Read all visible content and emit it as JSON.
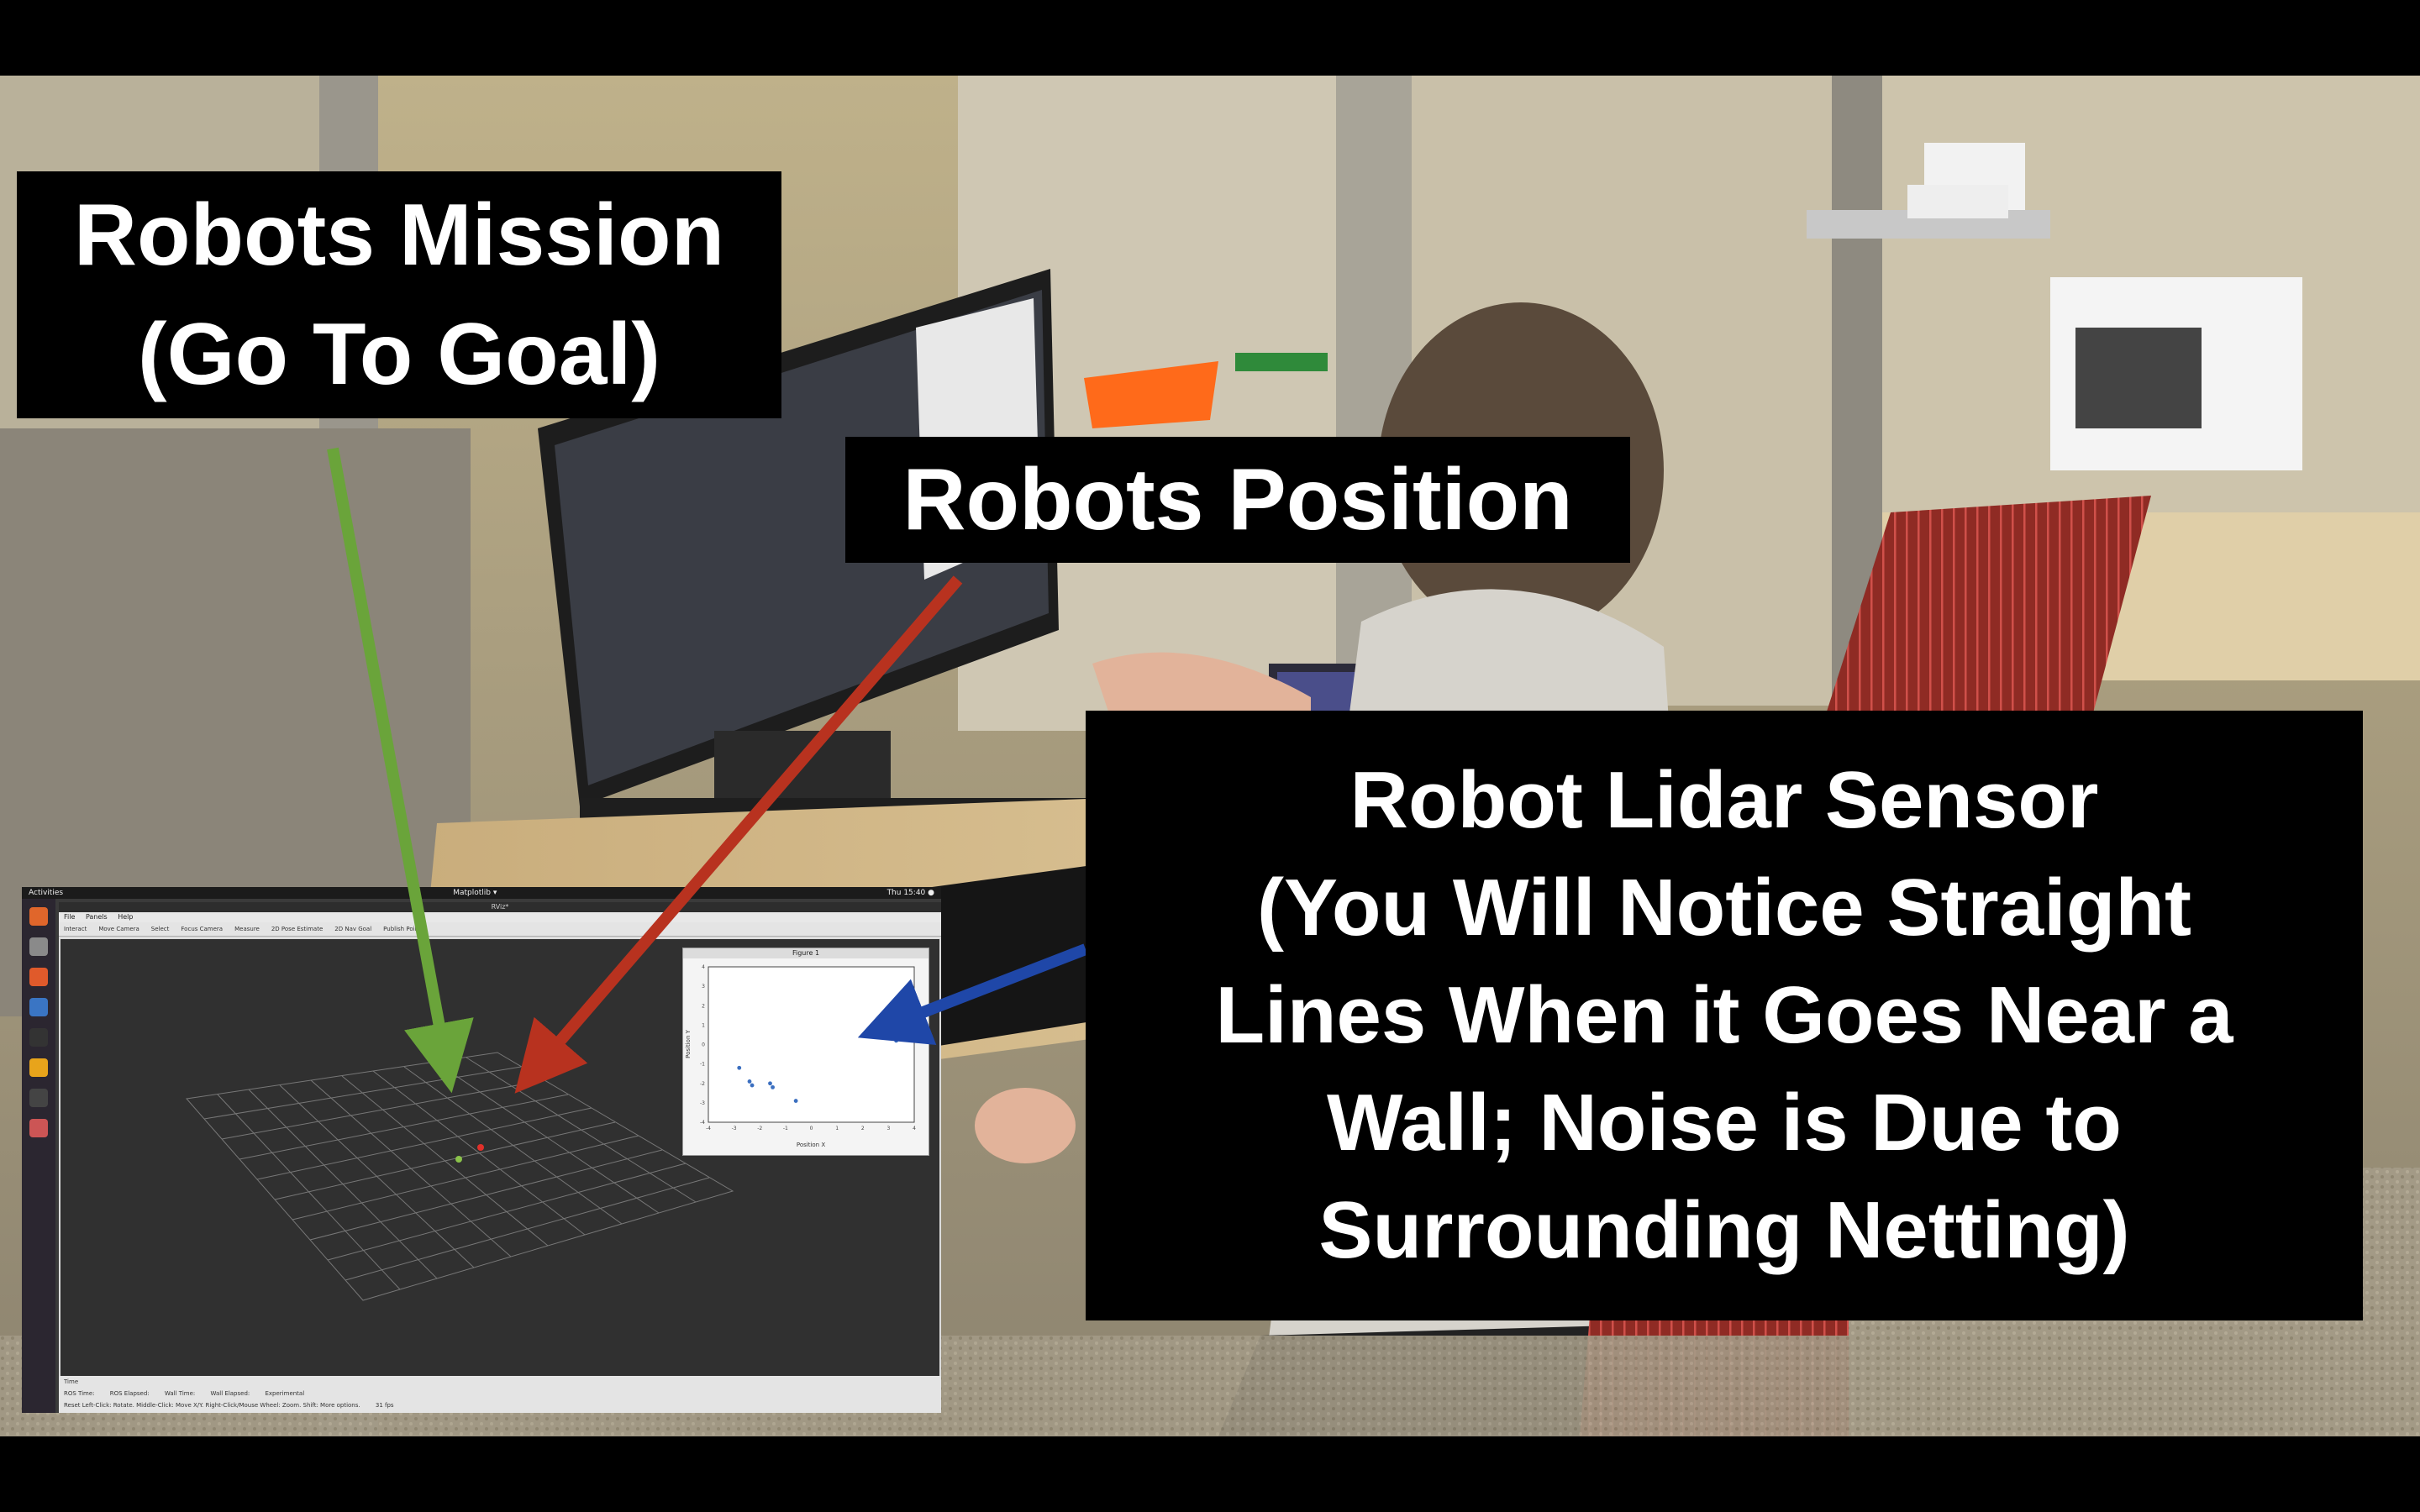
{
  "captions": {
    "mission": [
      "Robots Mission",
      "(Go To Goal)"
    ],
    "position": "Robots Position",
    "lidar": [
      "Robot Lidar Sensor",
      "(You Will Notice Straight",
      "Lines When it Goes Near a",
      "Wall; Noise is Due to",
      "Surrounding Netting)"
    ]
  },
  "arrows": {
    "mission": {
      "color": "#6aa43a",
      "points_to": "goal-marker"
    },
    "position": {
      "color": "#b8321f",
      "points_to": "robot-marker"
    },
    "lidar": {
      "color": "#1f47a8",
      "points_to": "lidar-scatter-plot"
    }
  },
  "screen": {
    "topbar": {
      "activities": "Activities",
      "app": "Matplotlib ▾",
      "clock": "Thu 15:40 ●"
    },
    "window_title": "RViz*",
    "menu": [
      "File",
      "Panels",
      "Help"
    ],
    "tools": [
      "Interact",
      "Move Camera",
      "Select",
      "Focus Camera",
      "Measure",
      "2D Pose Estimate",
      "2D Nav Goal",
      "Publish Point"
    ],
    "figure_title": "Figure 1",
    "figure_xlabel": "Position X",
    "figure_ylabel": "Position Y",
    "status": {
      "time_label": "Time",
      "ros_time_label": "ROS Time:",
      "ros_elapsed_label": "ROS Elapsed:",
      "wall_time_label": "Wall Time:",
      "wall_elapsed_label": "Wall Elapsed:",
      "experimental": "Experimental",
      "hint": "Reset  Left-Click: Rotate. Middle-Click: Move X/Y. Right-Click/Mouse Wheel: Zoom. Shift: More options.",
      "fps": "31 fps"
    }
  },
  "colors": {
    "caption_bg": "#000000",
    "caption_text": "#ffffff",
    "goal": "#8bc34a",
    "robot": "#e0302a",
    "lidar_points": "#3b6fc0"
  },
  "chart_data": {
    "type": "scatter",
    "title": "Figure 1",
    "xlabel": "Position X",
    "ylabel": "Position Y",
    "xlim": [
      -4,
      4
    ],
    "ylim": [
      -4,
      4
    ],
    "x": [
      -2.8,
      -2.4,
      -2.3,
      -1.6,
      -1.5,
      -0.6,
      3.3,
      3.4
    ],
    "y": [
      -1.2,
      -1.9,
      -2.1,
      -2.0,
      -2.2,
      -2.9,
      0.2,
      0.4
    ]
  }
}
